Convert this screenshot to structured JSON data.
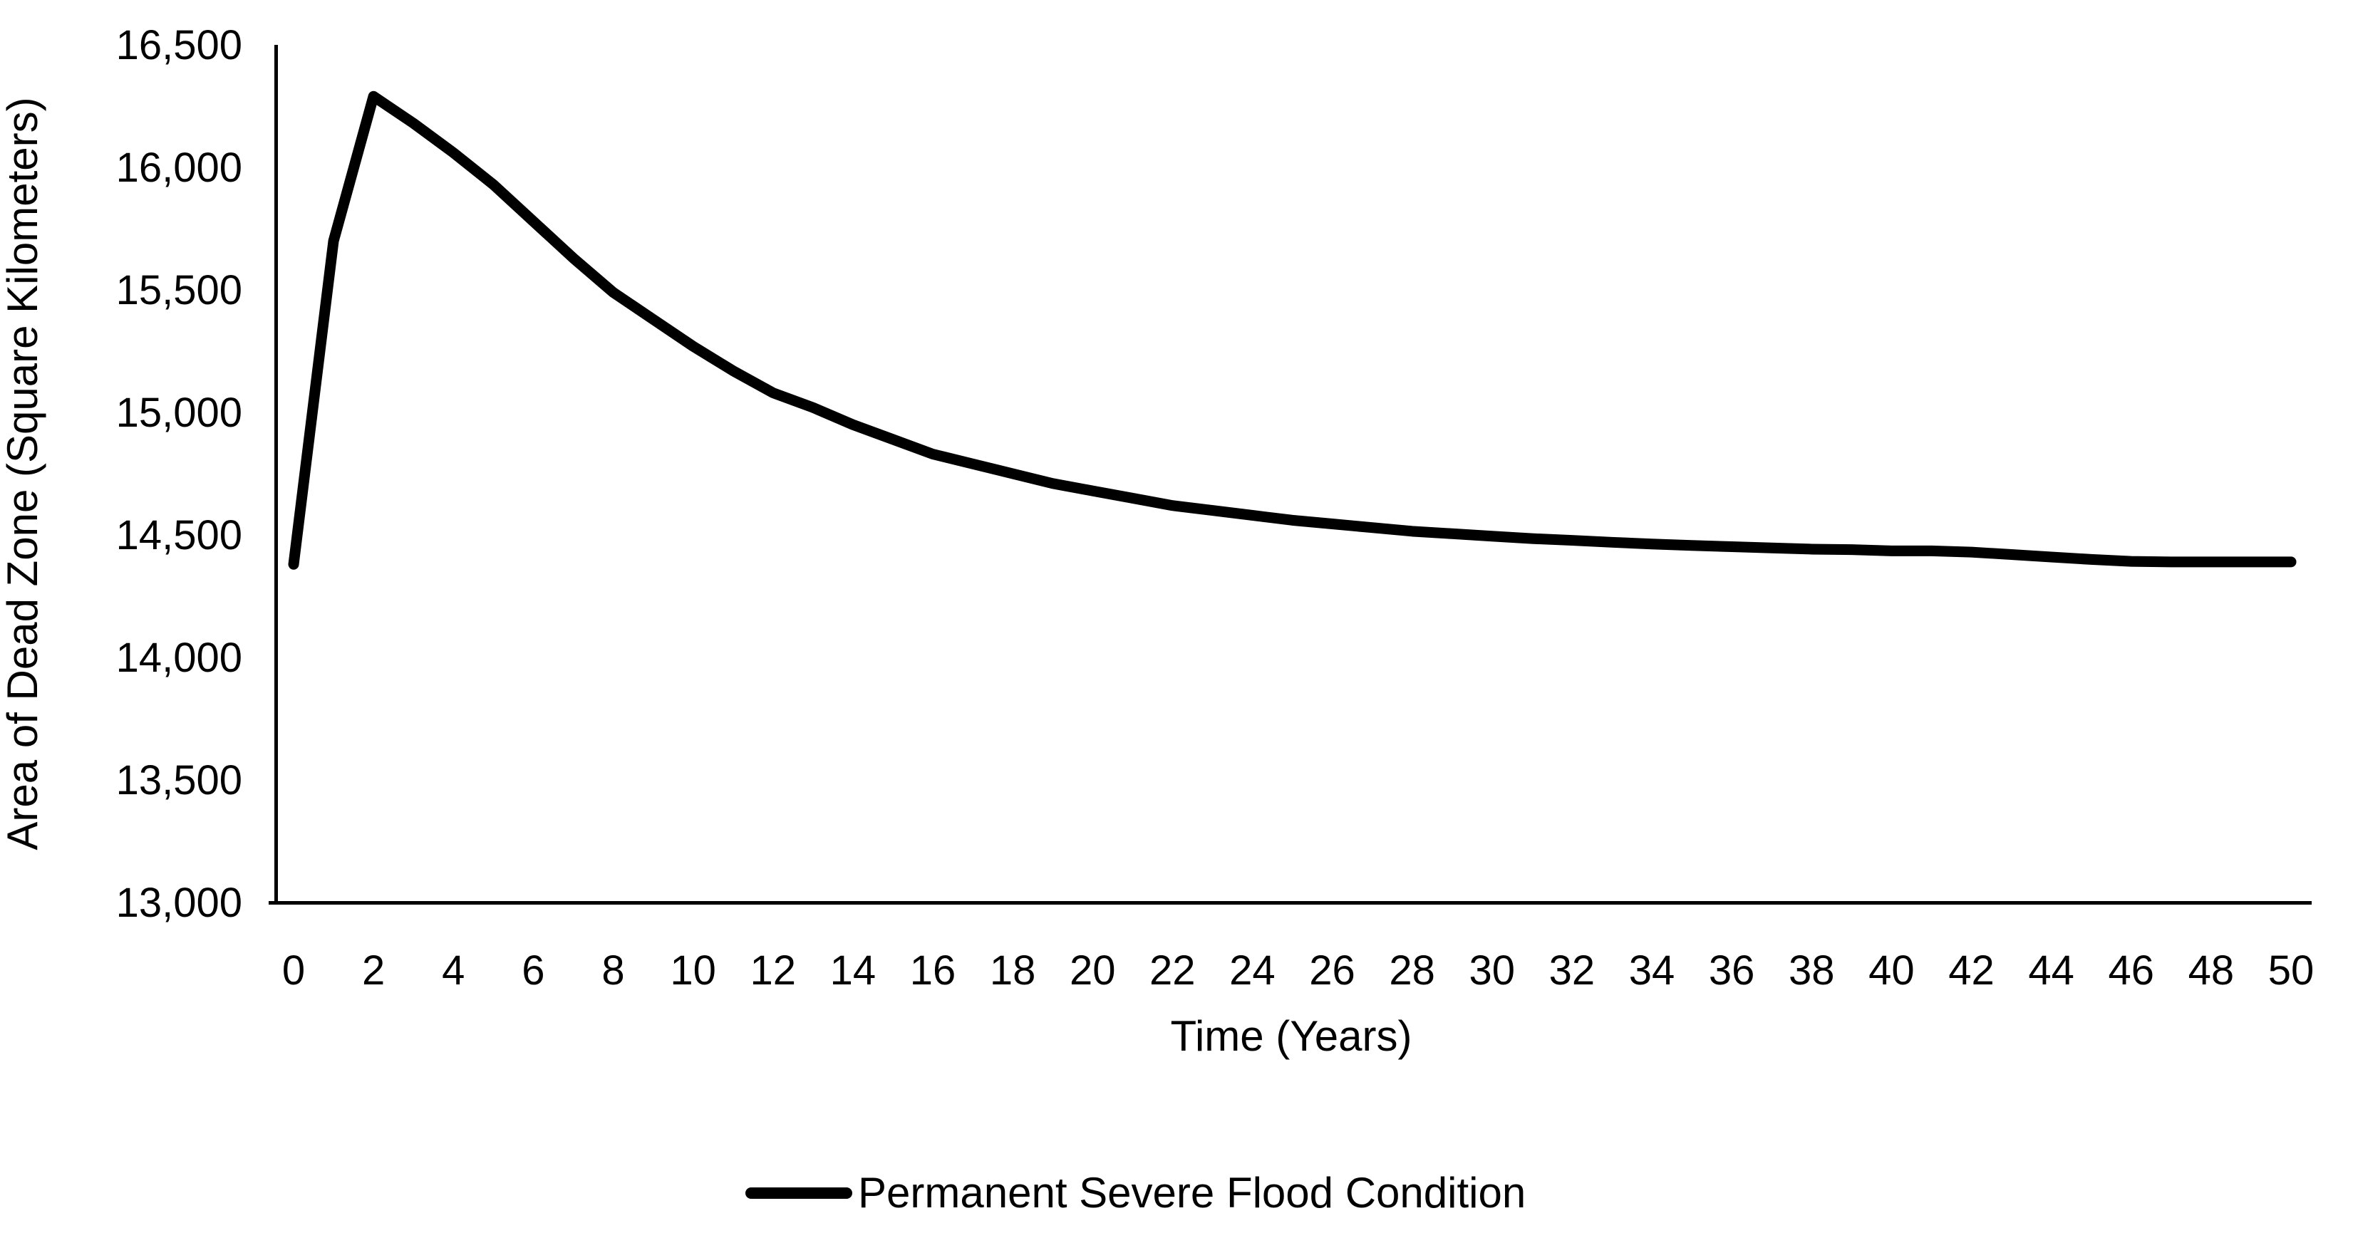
{
  "chart_data": {
    "type": "line",
    "title": "",
    "xlabel": "Time (Years)",
    "ylabel": "Area of Dead Zone (Square Kilometers)",
    "x_ticks": [
      0,
      2,
      4,
      6,
      8,
      10,
      12,
      14,
      16,
      18,
      20,
      22,
      24,
      26,
      28,
      30,
      32,
      34,
      36,
      38,
      40,
      42,
      44,
      46,
      48,
      50
    ],
    "y_ticks": [
      "16,500",
      "16,000",
      "15,500",
      "15,000",
      "14,500",
      "14,000",
      "13,500",
      "13,000"
    ],
    "xlim": [
      0,
      50
    ],
    "ylim": [
      13000,
      16500
    ],
    "grid": false,
    "background": "#ffffff",
    "axis_color": "#000000",
    "legend": {
      "position": "bottom-center",
      "entries": [
        "Permanent Severe Flood Condition"
      ]
    },
    "series": [
      {
        "name": "Permanent Severe Flood Condition",
        "color": "#000000",
        "line_width": 15,
        "x": [
          0,
          1,
          2,
          3,
          4,
          5,
          6,
          7,
          8,
          9,
          10,
          11,
          12,
          13,
          14,
          15,
          16,
          17,
          18,
          19,
          20,
          21,
          22,
          23,
          24,
          25,
          26,
          27,
          28,
          29,
          30,
          31,
          32,
          33,
          34,
          35,
          36,
          37,
          38,
          39,
          40,
          41,
          42,
          43,
          44,
          45,
          46,
          47,
          48,
          49,
          50
        ],
        "values": [
          14380,
          15700,
          16290,
          16180,
          16060,
          15930,
          15780,
          15630,
          15490,
          15380,
          15270,
          15170,
          15080,
          15020,
          14950,
          14890,
          14830,
          14790,
          14750,
          14710,
          14680,
          14650,
          14620,
          14600,
          14580,
          14560,
          14545,
          14530,
          14515,
          14505,
          14495,
          14485,
          14478,
          14470,
          14463,
          14457,
          14452,
          14447,
          14442,
          14440,
          14435,
          14435,
          14430,
          14420,
          14410,
          14400,
          14392,
          14390,
          14390,
          14390,
          14390
        ]
      }
    ]
  }
}
